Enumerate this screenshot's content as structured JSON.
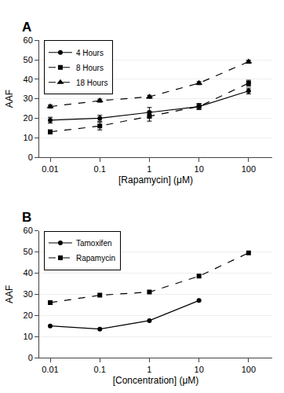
{
  "chart_data": [
    {
      "type": "line",
      "title": "A",
      "xlabel": "[Rapamycin] (μM)",
      "ylabel": "AAF",
      "x": [
        0.01,
        0.1,
        1,
        10,
        100
      ],
      "xlim": [
        0.006,
        300
      ],
      "xticks": [
        0.01,
        0.1,
        1,
        10,
        100
      ],
      "ylim": [
        0,
        60
      ],
      "yticks": [
        0,
        10,
        20,
        30,
        40,
        50,
        60
      ],
      "log": "x",
      "grid": "y",
      "legend": "upper left",
      "series": [
        {
          "name": "4 Hours",
          "color": "#000000",
          "marker": "circle",
          "line_style": "solid",
          "values": [
            19,
            20,
            23,
            26,
            34
          ],
          "yerr": [
            1.5,
            1.5,
            2.5,
            1.5,
            1.5
          ]
        },
        {
          "name": "8 Hours",
          "color": "#000000",
          "marker": "square",
          "line_style": "dashed",
          "values": [
            13,
            16,
            21,
            26,
            38
          ],
          "yerr": [
            1.0,
            2.0,
            2.5,
            1.5,
            1.5
          ]
        },
        {
          "name": "18 Hours",
          "color": "#000000",
          "marker": "triangle-up",
          "line_style": "dashed",
          "values": [
            26,
            29,
            31,
            38,
            49
          ],
          "yerr": [
            0.8,
            0.8,
            0.8,
            0.8,
            0.8
          ]
        }
      ]
    },
    {
      "type": "line",
      "title": "B",
      "xlabel": "[Concentration] (μM)",
      "ylabel": "AAF",
      "xlim": [
        0.006,
        300
      ],
      "xticks": [
        0.01,
        0.1,
        1,
        10,
        100
      ],
      "ylim": [
        0,
        60
      ],
      "yticks": [
        0,
        10,
        20,
        30,
        40,
        50,
        60
      ],
      "log": "x",
      "grid": "y",
      "legend": "upper left",
      "series": [
        {
          "name": "Tamoxifen",
          "color": "#000000",
          "marker": "circle",
          "line_style": "solid",
          "x": [
            0.01,
            0.1,
            1,
            10
          ],
          "values": [
            15,
            13.5,
            17.5,
            27
          ]
        },
        {
          "name": "Rapamycin",
          "color": "#000000",
          "marker": "square",
          "line_style": "dashed",
          "x": [
            0.01,
            0.1,
            1,
            10,
            100
          ],
          "values": [
            26,
            29.5,
            31,
            38.5,
            49.5
          ]
        }
      ]
    }
  ]
}
